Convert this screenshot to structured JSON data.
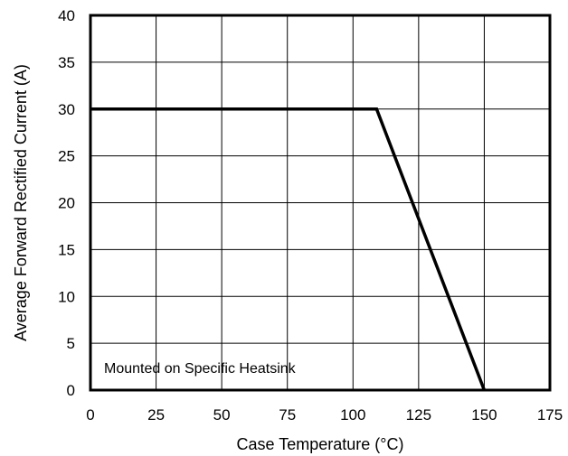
{
  "chart_data": {
    "type": "line",
    "title": "",
    "xlabel": "Case Temperature (°C)",
    "ylabel": "Average Forward Rectified Current (A)",
    "xlim": [
      0,
      175
    ],
    "ylim": [
      0,
      40
    ],
    "xticks": [
      0,
      25,
      50,
      75,
      100,
      125,
      150,
      175
    ],
    "yticks": [
      0,
      5,
      10,
      15,
      20,
      25,
      30,
      35,
      40
    ],
    "grid": true,
    "series": [
      {
        "x": [
          0,
          109,
          150
        ],
        "y": [
          30,
          30,
          0
        ]
      }
    ],
    "annotations": [
      {
        "text": "Mounted on Specific Heatsink",
        "position": "bottom-left"
      }
    ]
  }
}
